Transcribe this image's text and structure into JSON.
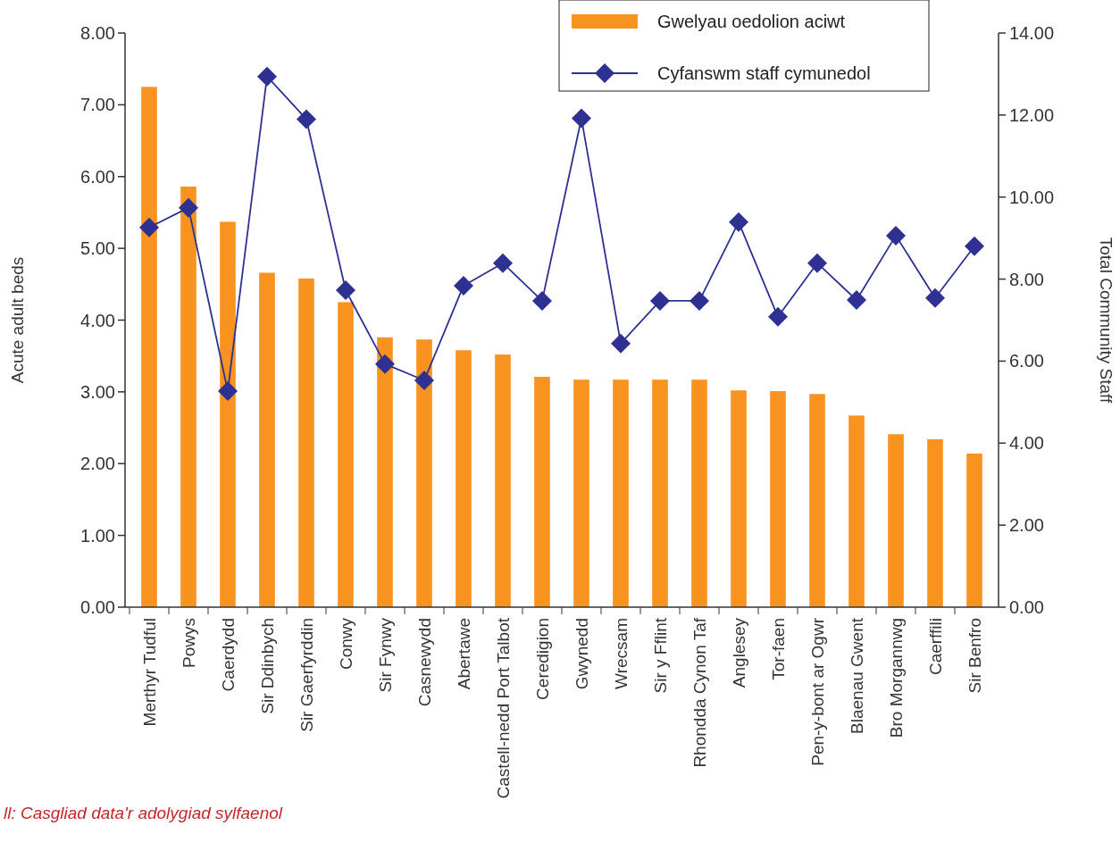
{
  "chart_data": {
    "type": "bar",
    "ylabel": "Acute adult beds",
    "y2label": "Total Community Staff",
    "categories": [
      "Merthyr Tudful",
      "Powys",
      "Caerdydd",
      "Sir Ddinbych",
      "Sir Gaerfyrddin",
      "Conwy",
      "Sir Fynwy",
      "Casnewydd",
      "Abertawe",
      "Castell-nedd Port Talbot",
      "Ceredigion",
      "Gwynedd",
      "Wrecsam",
      "Sir y Fflint",
      "Rhondda Cynon Taf",
      "Anglesey",
      "Tor-faen",
      "Pen-y-bont ar Ogwr",
      "Blaenau Gwent",
      "Bro Morgannwg",
      "Caerffili",
      "Sir Benfro"
    ],
    "series": [
      {
        "name": "Gwelyau oedolion aciwt",
        "color": "#f7931e",
        "values": [
          7.25,
          5.86,
          5.37,
          4.66,
          4.58,
          4.25,
          3.76,
          3.73,
          3.58,
          3.52,
          3.21,
          3.17,
          3.17,
          3.17,
          3.17,
          3.02,
          3.01,
          2.97,
          2.67,
          2.41,
          2.34,
          2.14
        ]
      },
      {
        "name": "Cyfanswm staff cymunedol",
        "type": "line",
        "axis": "y2",
        "color": "#2e3192",
        "marker": "diamond",
        "values": [
          9.26,
          9.74,
          5.27,
          12.94,
          11.9,
          7.73,
          5.93,
          5.53,
          7.84,
          8.39,
          7.47,
          11.92,
          6.43,
          7.47,
          7.47,
          9.39,
          7.08,
          8.39,
          7.49,
          9.06,
          7.54,
          8.8
        ]
      }
    ],
    "ylim": [
      0,
      8
    ],
    "yticks": [
      {
        "value": 0,
        "label": "0.00"
      },
      {
        "value": 1,
        "label": "1.00"
      },
      {
        "value": 2,
        "label": "2.00"
      },
      {
        "value": 3,
        "label": "3.00"
      },
      {
        "value": 4,
        "label": "4.00"
      },
      {
        "value": 5,
        "label": "5.00"
      },
      {
        "value": 6,
        "label": "6.00"
      },
      {
        "value": 7,
        "label": "7.00"
      },
      {
        "value": 8,
        "label": "8.00"
      }
    ],
    "y2lim": [
      0,
      14
    ],
    "y2ticks": [
      {
        "value": 0,
        "label": "0.00"
      },
      {
        "value": 2,
        "label": "2.00"
      },
      {
        "value": 4,
        "label": "4.00"
      },
      {
        "value": 6,
        "label": "6.00"
      },
      {
        "value": 8,
        "label": "8.00"
      },
      {
        "value": 10,
        "label": "10.00"
      },
      {
        "value": 12,
        "label": "12.00"
      },
      {
        "value": 14,
        "label": "14.00"
      }
    ],
    "legend": "top right",
    "grid": false,
    "annotations": [
      "ll: Casgliad data'r adolygiad sylfaenol"
    ]
  }
}
